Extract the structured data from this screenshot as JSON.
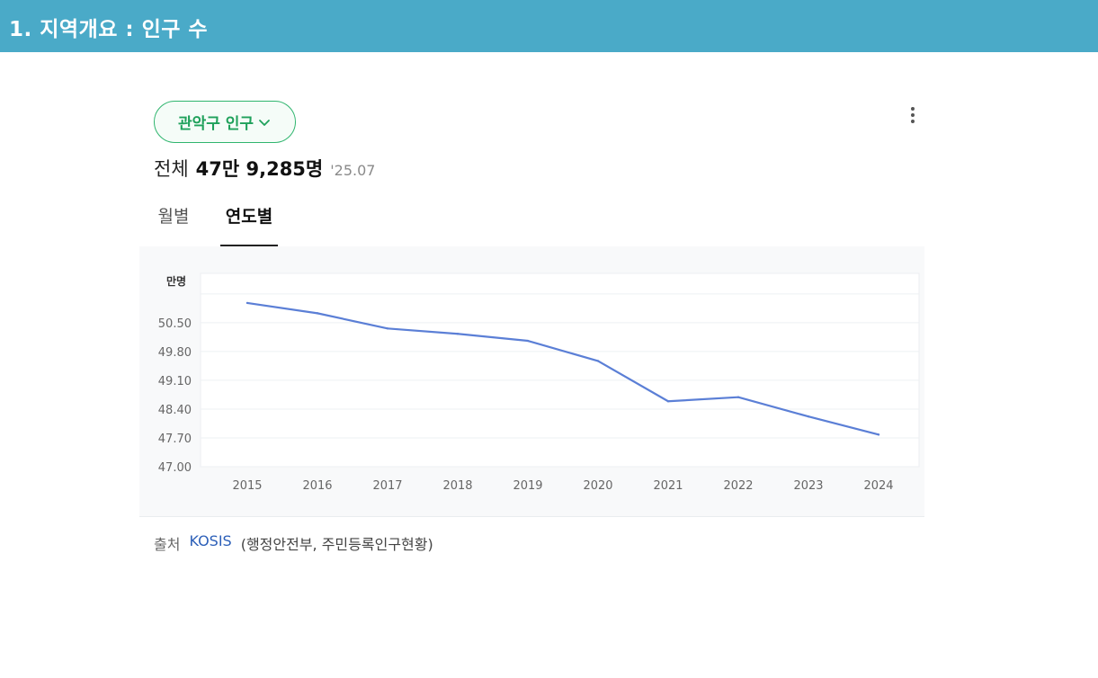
{
  "header": {
    "title": "1. 지역개요 : 인구 수"
  },
  "widget": {
    "region_button": "관악구 인구",
    "more_icon": "more-vertical-icon",
    "accent_color": "#2fb56e",
    "summary": {
      "label": "전체",
      "value": "47만 9,285명",
      "date": "'25.07"
    },
    "tabs": [
      {
        "label": "월별",
        "active": false
      },
      {
        "label": "연도별",
        "active": true
      }
    ],
    "source": {
      "label": "출처",
      "link": "KOSIS",
      "note": "(행정안전부, 주민등록인구현황)"
    }
  },
  "chart_data": {
    "type": "line",
    "ylabel": "만명",
    "ylim": [
      47.0,
      51.7
    ],
    "y_ticks": [
      "47.00",
      "47.70",
      "48.40",
      "49.10",
      "49.80",
      "50.50"
    ],
    "grid": true,
    "line_color": "#5b7fd6",
    "categories": [
      "2015",
      "2016",
      "2017",
      "2018",
      "2019",
      "2020",
      "2021",
      "2022",
      "2023",
      "2024"
    ],
    "series": [
      {
        "values": [
          50.98,
          50.73,
          50.36,
          50.23,
          50.06,
          49.57,
          48.59,
          48.69,
          48.22,
          47.78
        ]
      }
    ]
  }
}
